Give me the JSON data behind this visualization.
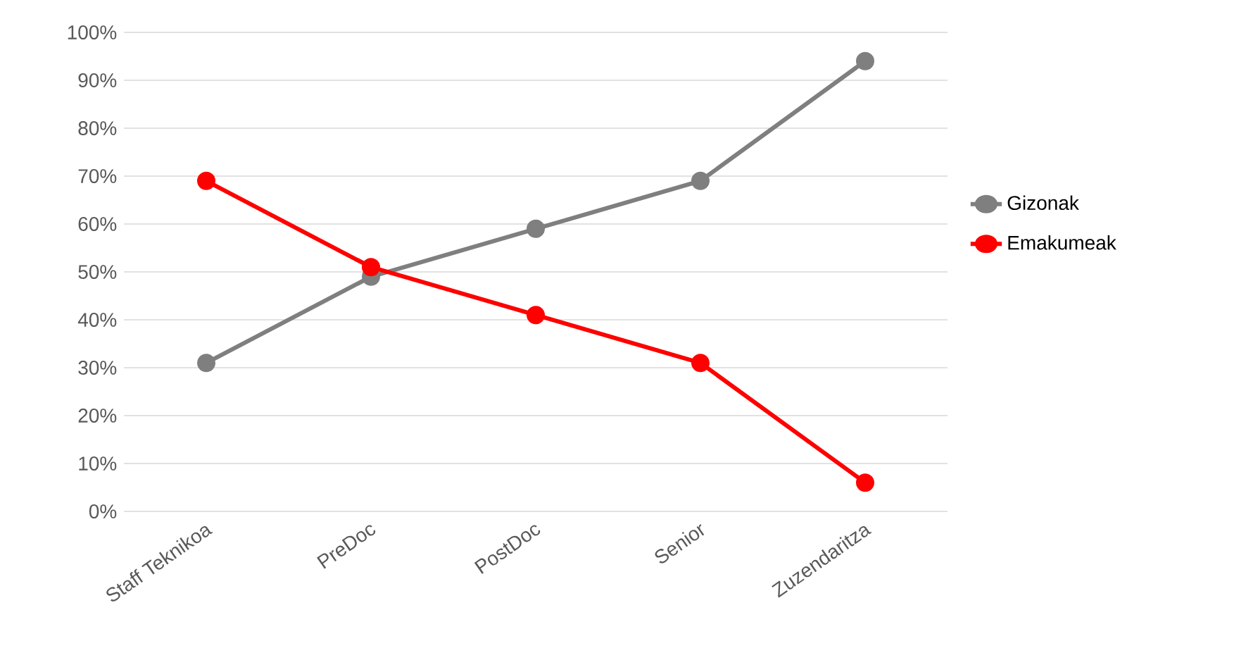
{
  "chart_data": {
    "type": "line",
    "categories": [
      "Staff Teknikoa",
      "PreDoc",
      "PostDoc",
      "Senior",
      "Zuzendaritza"
    ],
    "series": [
      {
        "name": "Gizonak",
        "color": "#7f7f7f",
        "values": [
          31,
          49,
          59,
          69,
          94
        ]
      },
      {
        "name": "Emakumeak",
        "color": "#ff0000",
        "values": [
          69,
          51,
          41,
          31,
          6
        ]
      }
    ],
    "ylim": [
      0,
      100
    ],
    "yticks": [
      {
        "value": 0,
        "label": "0%"
      },
      {
        "value": 10,
        "label": "10%"
      },
      {
        "value": 20,
        "label": "20%"
      },
      {
        "value": 30,
        "label": "30%"
      },
      {
        "value": 40,
        "label": "40%"
      },
      {
        "value": 50,
        "label": "50%"
      },
      {
        "value": 60,
        "label": "60%"
      },
      {
        "value": 70,
        "label": "70%"
      },
      {
        "value": 80,
        "label": "80%"
      },
      {
        "value": 90,
        "label": "90%"
      },
      {
        "value": 100,
        "label": "100%"
      }
    ],
    "grid": "y",
    "legend": "right",
    "marker": "circle",
    "line_style": "solid"
  }
}
